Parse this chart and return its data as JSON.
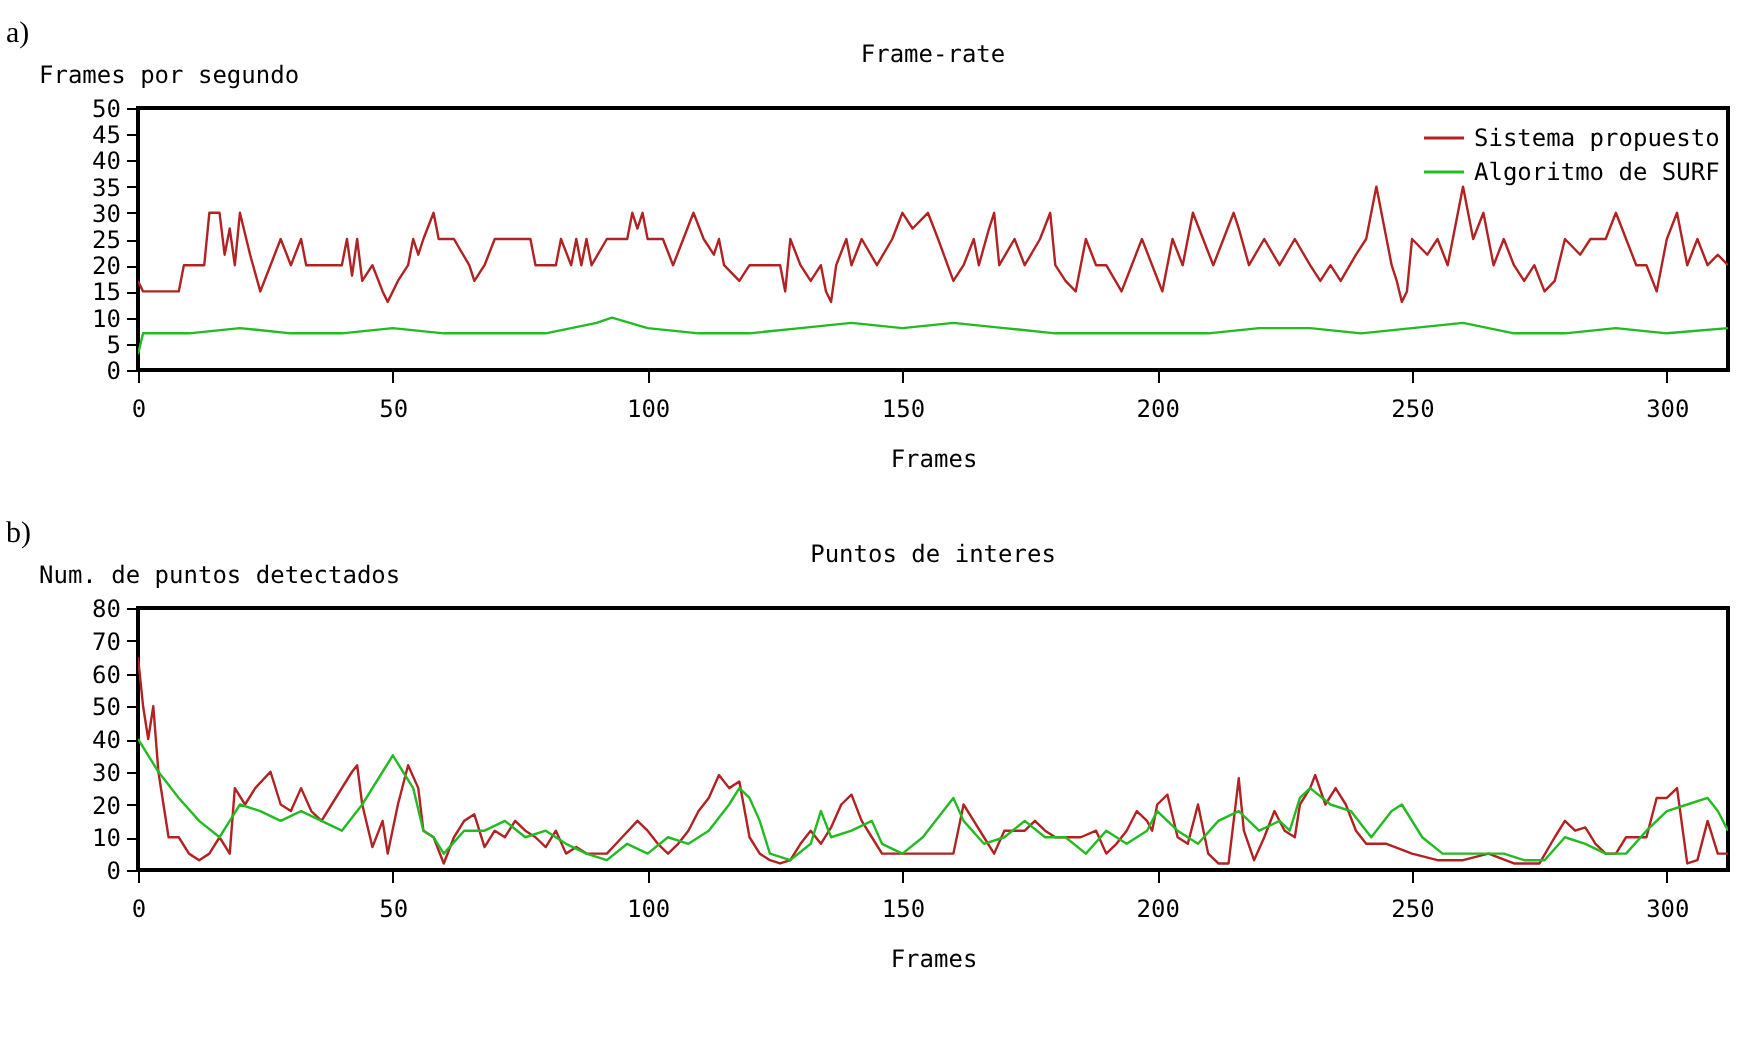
{
  "chart_data": [
    {
      "type": "line",
      "title": "Frame-rate",
      "xlabel": "Frames",
      "ylabel": "Frames por segundo",
      "annotations": [
        "a)"
      ],
      "xlim": [
        0,
        312
      ],
      "xticks": [
        0,
        50,
        100,
        150,
        200,
        250,
        300
      ],
      "ylim": [
        0,
        50
      ],
      "yticks": [
        0,
        5,
        10,
        15,
        20,
        25,
        30,
        35,
        40,
        45,
        50
      ],
      "grid": false,
      "legend": "top right",
      "series": [
        {
          "name": "Sistema propuesto",
          "color": "#b22222",
          "x": [
            0,
            1,
            8,
            9,
            13,
            14,
            16,
            17,
            18,
            19,
            20,
            22,
            24,
            26,
            28,
            30,
            32,
            33,
            40,
            41,
            42,
            43,
            44,
            46,
            48,
            49,
            51,
            53,
            54,
            55,
            56,
            58,
            59,
            62,
            65,
            66,
            68,
            70,
            77,
            78,
            82,
            83,
            85,
            86,
            87,
            88,
            89,
            92,
            96,
            97,
            98,
            99,
            100,
            103,
            105,
            107,
            109,
            111,
            113,
            114,
            115,
            118,
            120,
            126,
            127,
            128,
            130,
            132,
            134,
            135,
            136,
            137,
            139,
            140,
            142,
            145,
            148,
            150,
            152,
            155,
            157,
            160,
            162,
            164,
            165,
            167,
            168,
            169,
            172,
            174,
            177,
            179,
            180,
            182,
            184,
            186,
            188,
            190,
            193,
            195,
            197,
            199,
            201,
            203,
            205,
            207,
            209,
            211,
            213,
            215,
            216,
            218,
            221,
            224,
            227,
            230,
            232,
            234,
            236,
            239,
            241,
            242,
            243,
            245,
            246,
            247,
            248,
            249,
            250,
            253,
            255,
            257,
            259,
            260,
            262,
            264,
            266,
            268,
            270,
            272,
            274,
            276,
            278,
            280,
            283,
            285,
            288,
            290,
            292,
            294,
            296,
            298,
            300,
            302,
            304,
            306,
            308,
            310,
            312
          ],
          "values": [
            17,
            15,
            15,
            20,
            20,
            30,
            30,
            22,
            27,
            20,
            30,
            22,
            15,
            20,
            25,
            20,
            25,
            20,
            20,
            25,
            18,
            25,
            17,
            20,
            15,
            13,
            17,
            20,
            25,
            22,
            25,
            30,
            25,
            25,
            20,
            17,
            20,
            25,
            25,
            20,
            20,
            25,
            20,
            25,
            20,
            25,
            20,
            25,
            25,
            30,
            27,
            30,
            25,
            25,
            20,
            25,
            30,
            25,
            22,
            25,
            20,
            17,
            20,
            20,
            15,
            25,
            20,
            17,
            20,
            15,
            13,
            20,
            25,
            20,
            25,
            20,
            25,
            30,
            27,
            30,
            25,
            17,
            20,
            25,
            20,
            27,
            30,
            20,
            25,
            20,
            25,
            30,
            20,
            17,
            15,
            25,
            20,
            20,
            15,
            20,
            25,
            20,
            15,
            25,
            20,
            30,
            25,
            20,
            25,
            30,
            27,
            20,
            25,
            20,
            25,
            20,
            17,
            20,
            17,
            22,
            25,
            30,
            35,
            25,
            20,
            17,
            13,
            15,
            25,
            22,
            25,
            20,
            30,
            35,
            25,
            30,
            20,
            25,
            20,
            17,
            20,
            15,
            17,
            25,
            22,
            25,
            25,
            30,
            25,
            20,
            20,
            15,
            25,
            30,
            20,
            25,
            20,
            22,
            20
          ]
        },
        {
          "name": "Algoritmo de SURF",
          "color": "#22bb22",
          "x": [
            0,
            1,
            10,
            20,
            30,
            40,
            50,
            60,
            70,
            80,
            90,
            93,
            100,
            110,
            120,
            130,
            140,
            150,
            160,
            170,
            180,
            190,
            200,
            210,
            220,
            230,
            240,
            250,
            260,
            270,
            280,
            290,
            300,
            312
          ],
          "values": [
            3,
            7,
            7,
            8,
            7,
            7,
            8,
            7,
            7,
            7,
            9,
            10,
            8,
            7,
            7,
            8,
            9,
            8,
            9,
            8,
            7,
            7,
            7,
            7,
            8,
            8,
            7,
            8,
            9,
            7,
            7,
            8,
            7,
            8
          ]
        }
      ]
    },
    {
      "type": "line",
      "title": "Puntos de interes",
      "xlabel": "Frames",
      "ylabel": "Num. de puntos detectados",
      "annotations": [
        "b)"
      ],
      "xlim": [
        0,
        312
      ],
      "xticks": [
        0,
        50,
        100,
        150,
        200,
        250,
        300
      ],
      "ylim": [
        0,
        80
      ],
      "yticks": [
        0,
        10,
        20,
        30,
        40,
        50,
        60,
        70,
        80
      ],
      "grid": false,
      "legend": "top right",
      "series": [
        {
          "name": "Sistema propuesto",
          "color": "#b22222",
          "x": [
            0,
            1,
            2,
            3,
            4,
            6,
            8,
            10,
            12,
            14,
            16,
            18,
            19,
            21,
            23,
            26,
            28,
            30,
            32,
            34,
            36,
            38,
            42,
            43,
            44,
            46,
            48,
            49,
            51,
            53,
            55,
            56,
            58,
            60,
            62,
            64,
            66,
            68,
            70,
            72,
            74,
            76,
            78,
            80,
            82,
            84,
            86,
            88,
            90,
            92,
            95,
            98,
            100,
            102,
            104,
            106,
            108,
            110,
            112,
            114,
            116,
            118,
            120,
            122,
            124,
            126,
            128,
            130,
            132,
            134,
            136,
            138,
            140,
            142,
            144,
            146,
            150,
            160,
            162,
            164,
            166,
            168,
            170,
            174,
            176,
            178,
            180,
            185,
            188,
            190,
            192,
            194,
            196,
            198,
            199,
            200,
            202,
            204,
            206,
            208,
            210,
            212,
            214,
            216,
            217,
            219,
            221,
            223,
            225,
            227,
            228,
            230,
            231,
            233,
            235,
            237,
            239,
            241,
            245,
            250,
            255,
            260,
            265,
            270,
            275,
            278,
            280,
            282,
            284,
            286,
            288,
            290,
            292,
            294,
            296,
            298,
            300,
            302,
            304,
            306,
            308,
            310,
            312
          ],
          "values": [
            65,
            50,
            40,
            50,
            30,
            10,
            10,
            5,
            3,
            5,
            10,
            5,
            25,
            20,
            25,
            30,
            20,
            18,
            25,
            18,
            15,
            20,
            30,
            32,
            20,
            7,
            15,
            5,
            20,
            32,
            25,
            12,
            10,
            2,
            10,
            15,
            17,
            7,
            12,
            10,
            15,
            12,
            10,
            7,
            12,
            5,
            7,
            5,
            5,
            5,
            10,
            15,
            12,
            8,
            5,
            8,
            12,
            18,
            22,
            29,
            25,
            27,
            10,
            5,
            3,
            2,
            3,
            8,
            12,
            8,
            13,
            20,
            23,
            15,
            10,
            5,
            5,
            5,
            20,
            15,
            10,
            5,
            12,
            12,
            15,
            12,
            10,
            10,
            12,
            5,
            8,
            12,
            18,
            15,
            12,
            20,
            23,
            10,
            8,
            20,
            5,
            2,
            2,
            28,
            12,
            3,
            10,
            18,
            12,
            10,
            20,
            25,
            29,
            20,
            25,
            20,
            12,
            8,
            8,
            5,
            3,
            3,
            5,
            2,
            2,
            10,
            15,
            12,
            13,
            8,
            5,
            5,
            10,
            10,
            10,
            22,
            22,
            25,
            2,
            3,
            15,
            5,
            5
          ]
        },
        {
          "name": "Algoritmo de SURF",
          "color": "#22bb22",
          "x": [
            0,
            2,
            4,
            8,
            12,
            16,
            18,
            20,
            24,
            28,
            32,
            36,
            40,
            44,
            46,
            48,
            50,
            52,
            54,
            56,
            58,
            60,
            64,
            68,
            72,
            76,
            80,
            84,
            88,
            92,
            96,
            100,
            104,
            108,
            112,
            116,
            118,
            120,
            122,
            124,
            128,
            132,
            134,
            136,
            140,
            144,
            146,
            150,
            154,
            158,
            160,
            162,
            166,
            170,
            174,
            178,
            182,
            186,
            190,
            194,
            198,
            200,
            204,
            208,
            212,
            216,
            220,
            224,
            226,
            228,
            230,
            234,
            238,
            242,
            246,
            248,
            252,
            256,
            260,
            264,
            268,
            272,
            276,
            280,
            284,
            288,
            292,
            296,
            300,
            304,
            308,
            310,
            312
          ],
          "values": [
            40,
            35,
            30,
            22,
            15,
            10,
            15,
            20,
            18,
            15,
            18,
            15,
            12,
            20,
            25,
            30,
            35,
            30,
            25,
            12,
            10,
            5,
            12,
            12,
            15,
            10,
            12,
            8,
            5,
            3,
            8,
            5,
            10,
            8,
            12,
            20,
            25,
            22,
            15,
            5,
            3,
            8,
            18,
            10,
            12,
            15,
            8,
            5,
            10,
            18,
            22,
            15,
            8,
            10,
            15,
            10,
            10,
            5,
            12,
            8,
            12,
            18,
            12,
            8,
            15,
            18,
            12,
            15,
            12,
            22,
            25,
            20,
            18,
            10,
            18,
            20,
            10,
            5,
            5,
            5,
            5,
            3,
            3,
            10,
            8,
            5,
            5,
            12,
            18,
            20,
            22,
            18,
            12
          ]
        }
      ]
    }
  ]
}
